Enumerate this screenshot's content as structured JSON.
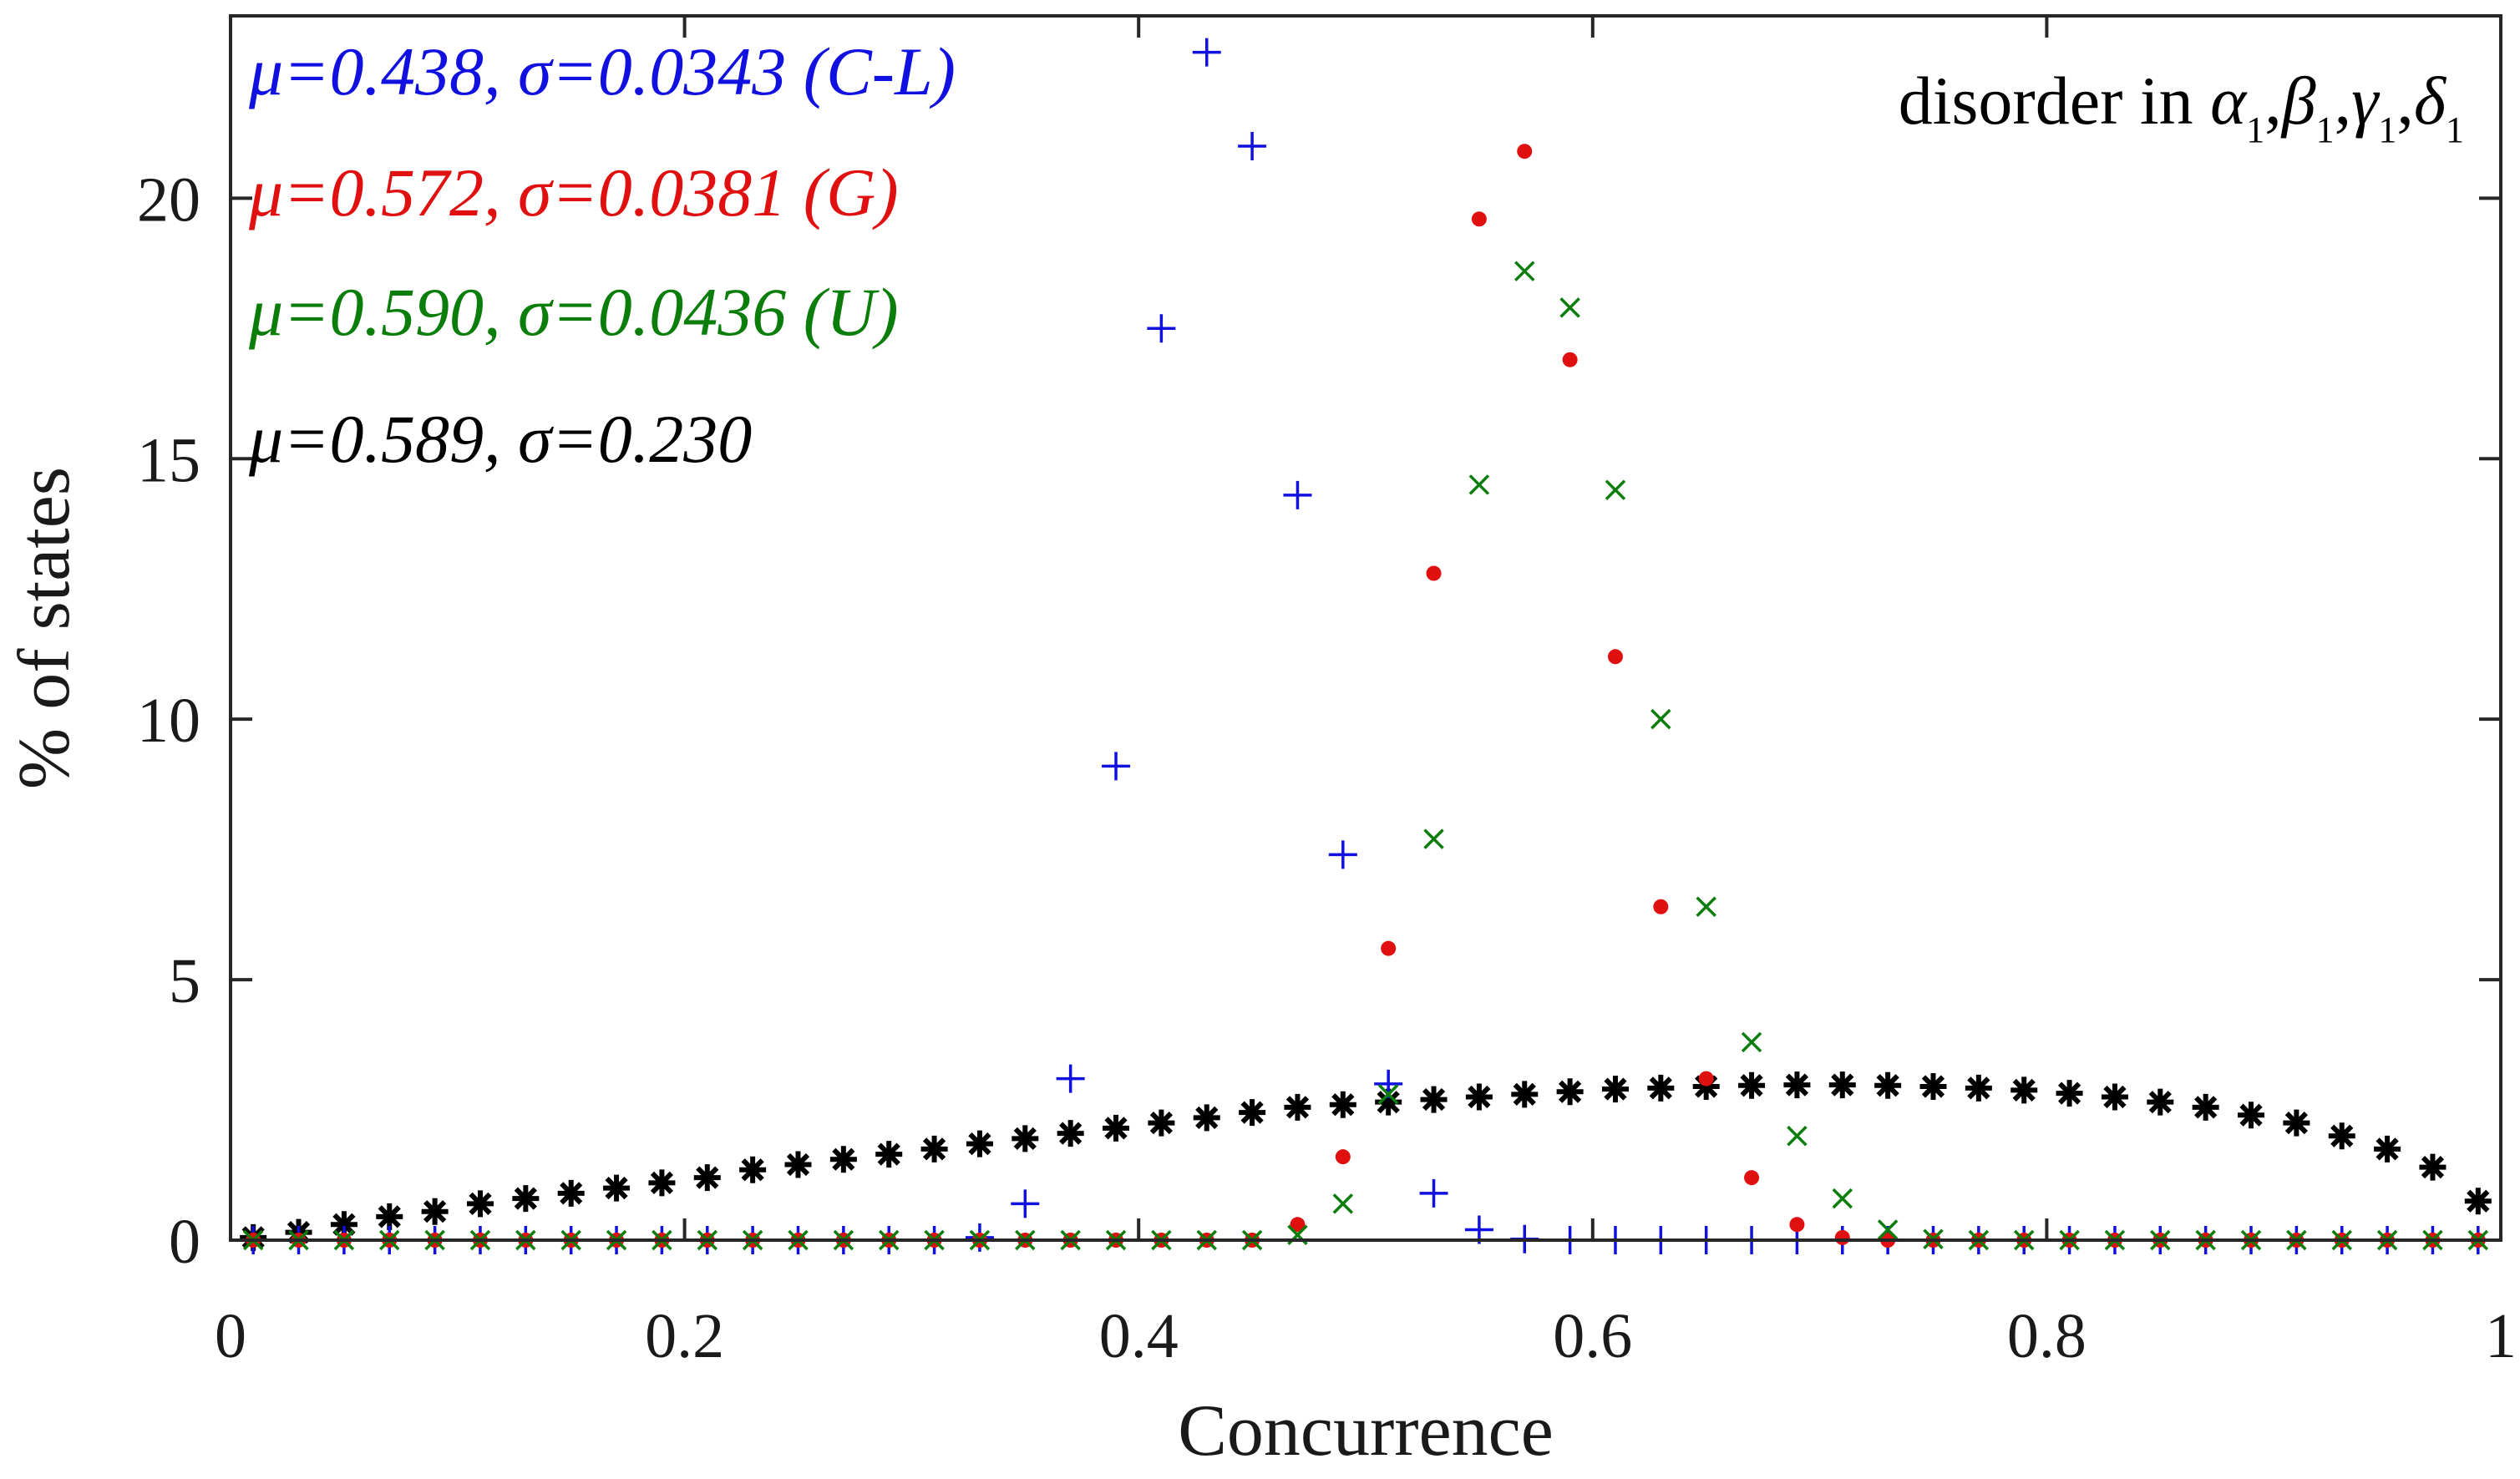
{
  "chart_data": {
    "type": "scatter",
    "xlabel": "Concurrence",
    "ylabel": "% of states",
    "xlim": [
      0,
      1
    ],
    "ylim": [
      0,
      23.5
    ],
    "xticks": [
      0,
      0.2,
      0.4,
      0.6,
      0.8,
      1
    ],
    "xtick_labels": [
      "0",
      "0.2",
      "0.4",
      "0.6",
      "0.8",
      "1"
    ],
    "yticks": [
      0,
      5,
      10,
      15,
      20
    ],
    "ytick_labels": [
      "0",
      "5",
      "10",
      "15",
      "20"
    ],
    "grid": false,
    "annotation": {
      "prefix": "disorder in ",
      "symbols": [
        "α",
        "β",
        "γ",
        "δ"
      ],
      "subscript": "1",
      "separator": ","
    },
    "legend_position": "top-left",
    "x": [
      0.01,
      0.03,
      0.05,
      0.07,
      0.09,
      0.11,
      0.13,
      0.15,
      0.17,
      0.19,
      0.21,
      0.23,
      0.25,
      0.27,
      0.29,
      0.31,
      0.33,
      0.35,
      0.37,
      0.39,
      0.41,
      0.43,
      0.45,
      0.47,
      0.49,
      0.51,
      0.53,
      0.55,
      0.57,
      0.59,
      0.61,
      0.63,
      0.65,
      0.67,
      0.69,
      0.71,
      0.73,
      0.75,
      0.77,
      0.79,
      0.81,
      0.83,
      0.85,
      0.87,
      0.89,
      0.91,
      0.93,
      0.95,
      0.97,
      0.99
    ],
    "series": [
      {
        "name": "C-L",
        "label": "μ=0.438, σ=0.0343 (C-L)",
        "color": "#1010e0",
        "marker": "plus",
        "values": [
          0,
          0,
          0,
          0,
          0,
          0,
          0,
          0,
          0,
          0,
          0,
          0,
          0,
          0,
          0,
          0,
          0.05,
          0.7,
          3.1,
          9.1,
          17.5,
          22.8,
          21.0,
          14.3,
          7.4,
          3.0,
          0.9,
          0.2,
          0.02,
          0,
          0,
          0,
          0,
          0,
          0,
          0,
          0,
          0,
          0,
          0,
          0,
          0,
          0,
          0,
          0,
          0,
          0,
          0,
          0,
          0
        ]
      },
      {
        "name": "G",
        "label": "μ=0.572, σ=0.0381 (G)",
        "color": "#e01010",
        "marker": "dot",
        "values": [
          0,
          0,
          0,
          0,
          0,
          0,
          0,
          0,
          0,
          0,
          0,
          0,
          0,
          0,
          0,
          0,
          0,
          0,
          0,
          0,
          0,
          0,
          0,
          0.3,
          1.6,
          5.6,
          12.8,
          19.6,
          20.9,
          16.9,
          11.2,
          6.4,
          3.1,
          1.2,
          0.3,
          0.05,
          0,
          0,
          0,
          0,
          0,
          0,
          0,
          0,
          0,
          0,
          0,
          0,
          0,
          0
        ]
      },
      {
        "name": "U",
        "label": "μ=0.590, σ=0.0436 (U)",
        "color": "#0b7d0b",
        "marker": "x",
        "values": [
          0,
          0,
          0,
          0,
          0,
          0,
          0,
          0,
          0,
          0,
          0,
          0,
          0,
          0,
          0,
          0,
          0,
          0,
          0,
          0,
          0,
          0,
          0,
          0.1,
          0.7,
          2.8,
          7.7,
          14.5,
          18.6,
          17.9,
          14.4,
          10.0,
          6.4,
          3.8,
          2.0,
          0.8,
          0.2,
          0.02,
          0,
          0,
          0,
          0,
          0,
          0,
          0,
          0,
          0,
          0,
          0,
          0
        ]
      },
      {
        "name": "all",
        "label": "μ=0.589, σ=0.230",
        "color": "#000000",
        "marker": "asterisk",
        "values": [
          0.05,
          0.15,
          0.3,
          0.45,
          0.55,
          0.7,
          0.8,
          0.9,
          1.0,
          1.1,
          1.2,
          1.35,
          1.45,
          1.55,
          1.65,
          1.75,
          1.85,
          1.95,
          2.05,
          2.15,
          2.25,
          2.35,
          2.45,
          2.55,
          2.6,
          2.65,
          2.7,
          2.75,
          2.8,
          2.85,
          2.9,
          2.92,
          2.95,
          2.97,
          2.98,
          2.98,
          2.97,
          2.95,
          2.92,
          2.88,
          2.82,
          2.75,
          2.65,
          2.55,
          2.4,
          2.25,
          2.0,
          1.75,
          1.4,
          0.75
        ]
      }
    ]
  }
}
